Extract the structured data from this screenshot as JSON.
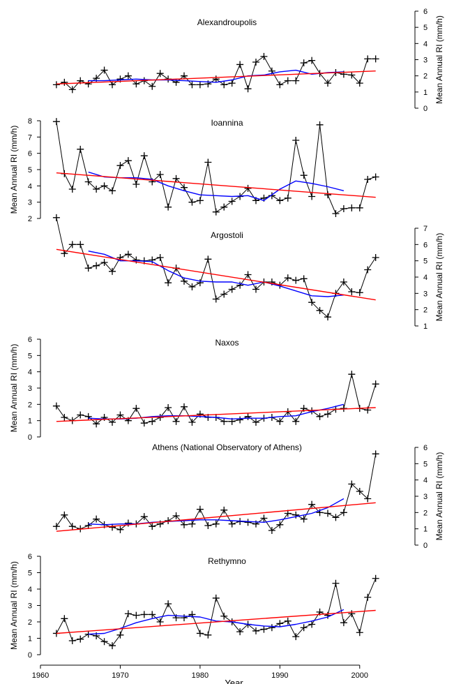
{
  "colors": {
    "observed": "#000000",
    "trend": "#ff0000",
    "moving_average": "#0000ff"
  },
  "chart_data": [
    {
      "type": "line",
      "title": "Alexandroupolis",
      "ylabel": "Mean Annual RI (mm/h)",
      "ylim": [
        0,
        6
      ],
      "yticks": [
        "0",
        "1",
        "2",
        "3",
        "4",
        "5",
        "6"
      ],
      "xlim": [
        1960,
        2005
      ],
      "series": [
        {
          "role": "observed",
          "marker": "plus",
          "x": [
            1962,
            1963,
            1964,
            1965,
            1966,
            1967,
            1968,
            1969,
            1970,
            1971,
            1972,
            1973,
            1974,
            1975,
            1976,
            1977,
            1978,
            1979,
            1980,
            1981,
            1982,
            1983,
            1984,
            1985,
            1986,
            1987,
            1988,
            1989,
            1990,
            1991,
            1992,
            1993,
            1994,
            1995,
            1996,
            1997,
            1998,
            1999,
            2000,
            2001,
            2002
          ],
          "y": [
            1.45,
            1.6,
            1.15,
            1.7,
            1.5,
            1.85,
            2.35,
            1.45,
            1.8,
            2.0,
            1.5,
            1.7,
            1.35,
            2.15,
            1.8,
            1.6,
            2.0,
            1.45,
            1.45,
            1.5,
            1.8,
            1.45,
            1.55,
            2.7,
            1.2,
            2.85,
            3.2,
            2.3,
            1.45,
            1.7,
            1.7,
            2.8,
            2.95,
            2.15,
            1.55,
            2.2,
            2.1,
            2.05,
            1.55,
            3.05,
            3.05
          ]
        },
        {
          "role": "moving_average",
          "x": [
            1966,
            1968,
            1970,
            1972,
            1974,
            1976,
            1978,
            1980,
            1982,
            1984,
            1986,
            1988,
            1990,
            1992,
            1994,
            1996,
            1998
          ],
          "y": [
            1.7,
            1.7,
            1.75,
            1.8,
            1.75,
            1.75,
            1.7,
            1.65,
            1.6,
            1.75,
            2.0,
            2.05,
            2.25,
            2.35,
            2.1,
            2.2,
            2.25
          ]
        },
        {
          "role": "trend",
          "x": [
            1962,
            2002
          ],
          "y": [
            1.5,
            2.3
          ]
        }
      ]
    },
    {
      "type": "line",
      "title": "Ioannina",
      "ylabel": "Mean Annual RI (mm/h)",
      "ylim": [
        2,
        8
      ],
      "yticks": [
        "2",
        "3",
        "4",
        "5",
        "6",
        "7",
        "8"
      ],
      "xlim": [
        1960,
        2005
      ],
      "series": [
        {
          "role": "observed",
          "marker": "plus",
          "x": [
            1962,
            1963,
            1964,
            1965,
            1966,
            1967,
            1968,
            1969,
            1970,
            1971,
            1972,
            1973,
            1974,
            1975,
            1976,
            1977,
            1978,
            1979,
            1980,
            1981,
            1982,
            1983,
            1984,
            1985,
            1986,
            1987,
            1988,
            1989,
            1990,
            1991,
            1992,
            1993,
            1994,
            1995,
            1996,
            1997,
            1998,
            1999,
            2000,
            2001,
            2002
          ],
          "y": [
            7.95,
            4.75,
            3.8,
            6.25,
            4.25,
            3.8,
            4.0,
            3.7,
            5.25,
            5.55,
            4.1,
            5.85,
            4.25,
            4.7,
            2.7,
            4.45,
            3.9,
            3.0,
            3.1,
            5.45,
            2.4,
            2.7,
            3.05,
            3.35,
            3.85,
            3.1,
            3.25,
            3.4,
            3.1,
            3.25,
            6.8,
            4.65,
            3.35,
            7.75,
            3.45,
            2.3,
            2.6,
            2.65,
            2.65,
            4.4,
            4.55
          ]
        },
        {
          "role": "moving_average",
          "x": [
            1966,
            1968,
            1970,
            1972,
            1974,
            1976,
            1978,
            1980,
            1982,
            1984,
            1986,
            1988,
            1990,
            1992,
            1994,
            1996,
            1998
          ],
          "y": [
            4.85,
            4.55,
            4.5,
            4.5,
            4.4,
            4.0,
            3.7,
            3.45,
            3.4,
            3.35,
            3.4,
            3.1,
            3.8,
            4.3,
            4.15,
            3.95,
            3.7
          ]
        },
        {
          "role": "trend",
          "x": [
            1962,
            2002
          ],
          "y": [
            4.8,
            3.3
          ]
        }
      ]
    },
    {
      "type": "line",
      "title": "Argostoli",
      "ylabel": "Mean Annual RI (mm/h)",
      "ylim": [
        1,
        7
      ],
      "yticks": [
        "1",
        "2",
        "3",
        "4",
        "5",
        "6",
        "7"
      ],
      "xlim": [
        1960,
        2005
      ],
      "series": [
        {
          "role": "observed",
          "marker": "plus",
          "x": [
            1962,
            1963,
            1964,
            1965,
            1966,
            1967,
            1968,
            1969,
            1970,
            1971,
            1972,
            1973,
            1974,
            1975,
            1976,
            1977,
            1978,
            1979,
            1980,
            1981,
            1982,
            1983,
            1984,
            1985,
            1986,
            1987,
            1988,
            1989,
            1990,
            1991,
            1992,
            1993,
            1994,
            1995,
            1996,
            1997,
            1998,
            1999,
            2000,
            2001,
            2002
          ],
          "y": [
            7.65,
            5.45,
            6.0,
            6.0,
            4.55,
            4.7,
            4.9,
            4.35,
            5.2,
            5.4,
            5.05,
            5.0,
            5.05,
            5.2,
            3.65,
            4.55,
            3.75,
            3.4,
            3.65,
            5.1,
            2.65,
            2.95,
            3.25,
            3.5,
            4.15,
            3.25,
            3.7,
            3.7,
            3.5,
            3.95,
            3.8,
            3.9,
            2.45,
            1.95,
            1.55,
            3.0,
            3.7,
            3.1,
            3.05,
            4.45,
            5.2
          ]
        },
        {
          "role": "moving_average",
          "x": [
            1966,
            1968,
            1970,
            1972,
            1974,
            1976,
            1978,
            1980,
            1982,
            1984,
            1986,
            1988,
            1990,
            1992,
            1994,
            1996,
            1998
          ],
          "y": [
            5.6,
            5.4,
            5.0,
            5.0,
            4.95,
            4.4,
            3.95,
            3.75,
            3.7,
            3.7,
            3.5,
            3.7,
            3.45,
            3.15,
            2.85,
            2.8,
            2.9
          ]
        },
        {
          "role": "trend",
          "x": [
            1962,
            2002
          ],
          "y": [
            5.7,
            2.6
          ]
        }
      ]
    },
    {
      "type": "line",
      "title": "Naxos",
      "ylabel": "Mean Annual RI (mm/h)",
      "ylim": [
        0,
        6
      ],
      "yticks": [
        "0",
        "1",
        "2",
        "3",
        "4",
        "5",
        "6"
      ],
      "xlim": [
        1960,
        2005
      ],
      "series": [
        {
          "role": "observed",
          "marker": "plus",
          "x": [
            1962,
            1963,
            1964,
            1965,
            1966,
            1967,
            1968,
            1969,
            1970,
            1971,
            1972,
            1973,
            1974,
            1975,
            1976,
            1977,
            1978,
            1979,
            1980,
            1981,
            1982,
            1983,
            1984,
            1985,
            1986,
            1987,
            1988,
            1989,
            1990,
            1991,
            1992,
            1993,
            1994,
            1995,
            1996,
            1997,
            1998,
            1999,
            2000,
            2001,
            2002
          ],
          "y": [
            1.9,
            1.2,
            1.0,
            1.35,
            1.25,
            0.8,
            1.2,
            0.9,
            1.35,
            1.0,
            1.75,
            0.85,
            0.95,
            1.2,
            1.8,
            0.95,
            1.85,
            0.9,
            1.4,
            1.2,
            1.2,
            0.95,
            0.95,
            1.05,
            1.25,
            0.9,
            1.15,
            1.2,
            0.95,
            1.55,
            0.95,
            1.75,
            1.6,
            1.25,
            1.4,
            1.7,
            1.75,
            3.85,
            1.75,
            1.65,
            3.25
          ]
        },
        {
          "role": "moving_average",
          "x": [
            1966,
            1968,
            1970,
            1972,
            1974,
            1976,
            1978,
            1980,
            1982,
            1984,
            1986,
            1988,
            1990,
            1992,
            1994,
            1996,
            1998
          ],
          "y": [
            1.15,
            1.1,
            1.1,
            1.15,
            1.25,
            1.3,
            1.3,
            1.25,
            1.2,
            1.1,
            1.15,
            1.15,
            1.25,
            1.3,
            1.55,
            1.75,
            2.0
          ]
        },
        {
          "role": "trend",
          "x": [
            1962,
            2002
          ],
          "y": [
            0.95,
            1.8
          ]
        }
      ]
    },
    {
      "type": "line",
      "title": "Athens (National Observatory of Athens)",
      "ylabel": "Mean Annual RI (mm/h)",
      "ylim": [
        0,
        6
      ],
      "yticks": [
        "0",
        "1",
        "2",
        "3",
        "4",
        "5",
        "6"
      ],
      "xlim": [
        1960,
        2005
      ],
      "series": [
        {
          "role": "observed",
          "marker": "plus",
          "x": [
            1962,
            1963,
            1964,
            1965,
            1966,
            1967,
            1968,
            1969,
            1970,
            1971,
            1972,
            1973,
            1974,
            1975,
            1976,
            1977,
            1978,
            1979,
            1980,
            1981,
            1982,
            1983,
            1984,
            1985,
            1986,
            1987,
            1988,
            1989,
            1990,
            1991,
            1992,
            1993,
            1994,
            1995,
            1996,
            1997,
            1998,
            1999,
            2000,
            2001,
            2002
          ],
          "y": [
            1.15,
            1.85,
            1.15,
            1.0,
            1.2,
            1.6,
            1.25,
            1.1,
            0.95,
            1.35,
            1.3,
            1.75,
            1.15,
            1.3,
            1.5,
            1.8,
            1.25,
            1.3,
            2.2,
            1.2,
            1.3,
            2.15,
            1.3,
            1.45,
            1.4,
            1.3,
            1.65,
            0.9,
            1.25,
            1.95,
            1.85,
            1.6,
            2.5,
            2.0,
            1.95,
            1.7,
            2.0,
            3.75,
            3.3,
            2.85,
            5.6
          ]
        },
        {
          "role": "moving_average",
          "x": [
            1966,
            1968,
            1970,
            1972,
            1974,
            1976,
            1978,
            1980,
            1982,
            1984,
            1986,
            1988,
            1990,
            1992,
            1994,
            1996,
            1998
          ],
          "y": [
            1.3,
            1.25,
            1.3,
            1.3,
            1.4,
            1.45,
            1.5,
            1.55,
            1.55,
            1.5,
            1.45,
            1.4,
            1.55,
            1.75,
            1.95,
            2.3,
            2.85
          ]
        },
        {
          "role": "trend",
          "x": [
            1962,
            2002
          ],
          "y": [
            0.85,
            2.6
          ]
        }
      ]
    },
    {
      "type": "line",
      "title": "Rethymno",
      "xlabel": "Year",
      "ylabel": "Mean Annual RI (mm/h)",
      "ylim": [
        0,
        6
      ],
      "yticks": [
        "0",
        "1",
        "2",
        "3",
        "4",
        "5",
        "6"
      ],
      "xlim": [
        1960,
        2005
      ],
      "xticks": [
        "1960",
        "1970",
        "1980",
        "1990",
        "2000"
      ],
      "series": [
        {
          "role": "observed",
          "marker": "plus",
          "x": [
            1962,
            1963,
            1964,
            1965,
            1966,
            1967,
            1968,
            1969,
            1970,
            1971,
            1972,
            1973,
            1974,
            1975,
            1976,
            1977,
            1978,
            1979,
            1980,
            1981,
            1982,
            1983,
            1984,
            1985,
            1986,
            1987,
            1988,
            1989,
            1990,
            1991,
            1992,
            1993,
            1994,
            1995,
            1996,
            1997,
            1998,
            1999,
            2000,
            2001,
            2002
          ],
          "y": [
            1.3,
            2.2,
            0.85,
            0.95,
            1.25,
            1.15,
            0.8,
            0.55,
            1.2,
            2.5,
            2.4,
            2.45,
            2.45,
            2.0,
            3.1,
            2.25,
            2.25,
            2.45,
            1.3,
            1.2,
            3.45,
            2.35,
            2.0,
            1.4,
            1.85,
            1.45,
            1.55,
            1.65,
            1.9,
            2.05,
            1.1,
            1.65,
            1.85,
            2.6,
            2.4,
            4.35,
            1.95,
            2.5,
            1.35,
            3.5,
            4.65
          ]
        },
        {
          "role": "moving_average",
          "x": [
            1966,
            1968,
            1970,
            1972,
            1974,
            1976,
            1978,
            1980,
            1982,
            1984,
            1986,
            1988,
            1990,
            1992,
            1994,
            1996,
            1998
          ],
          "y": [
            1.25,
            1.3,
            1.6,
            1.95,
            2.2,
            2.4,
            2.35,
            2.3,
            2.05,
            2.0,
            1.85,
            1.75,
            1.7,
            1.85,
            2.05,
            2.3,
            2.75
          ]
        },
        {
          "role": "trend",
          "x": [
            1962,
            2002
          ],
          "y": [
            1.3,
            2.7
          ]
        }
      ]
    }
  ]
}
